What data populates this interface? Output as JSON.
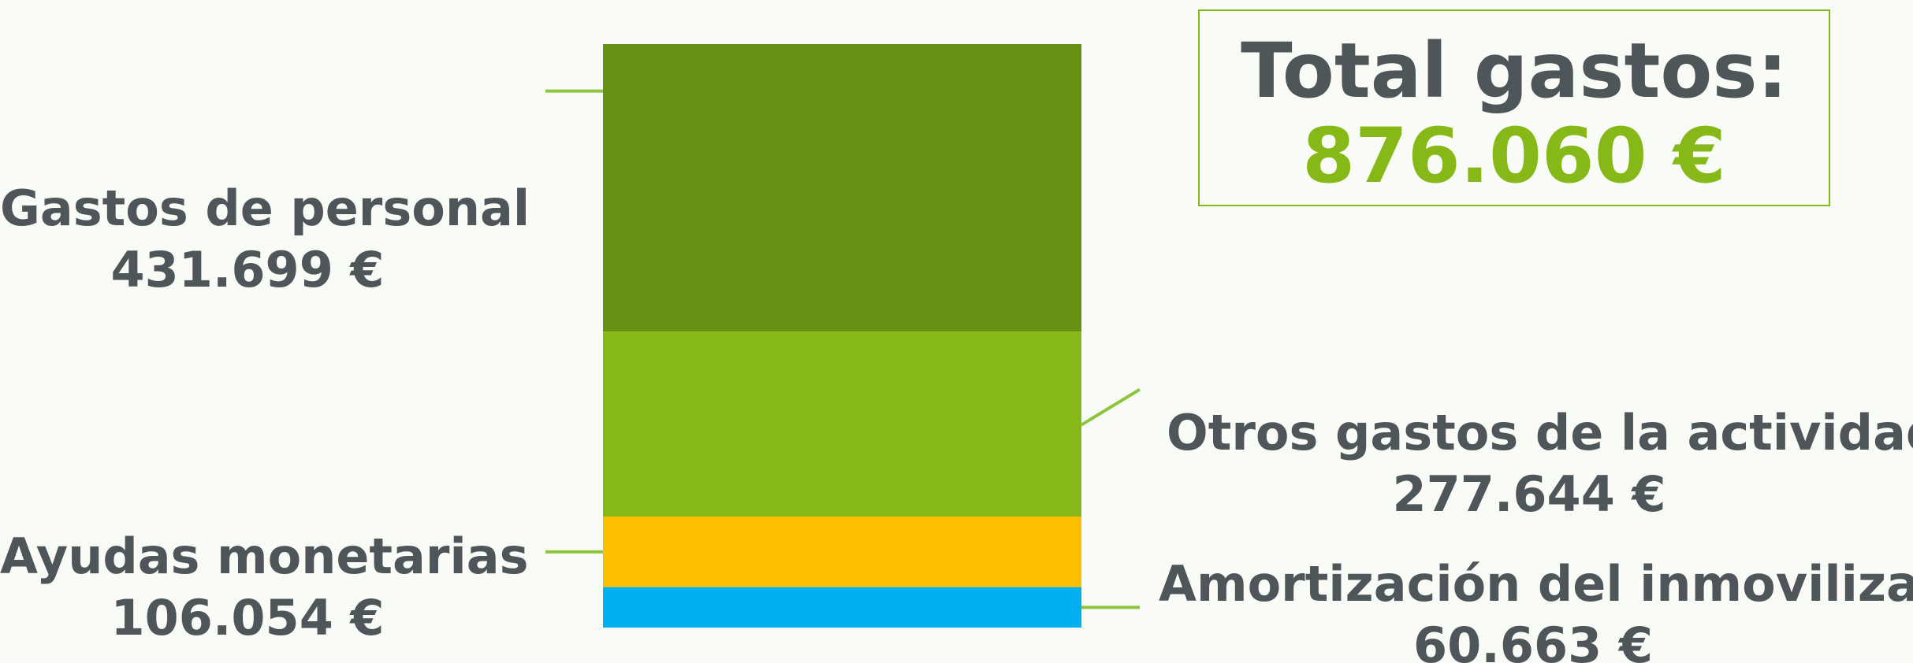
{
  "chart_data": {
    "type": "bar",
    "stacked": true,
    "total_label": "Total gastos:",
    "total_value_label": "876.060 €",
    "total": 876060,
    "segments": [
      {
        "name": "Gastos de personal",
        "value": 431699,
        "value_label": "431.699 €",
        "color": "#669112"
      },
      {
        "name": "Otros gastos de la actividad",
        "value": 277644,
        "value_label": "277.644  €",
        "color": "#86b817"
      },
      {
        "name": "Ayudas monetarias",
        "value": 106054,
        "value_label": "106.054 €",
        "color": "#fbbf00"
      },
      {
        "name": "Amortización del inmovilizado",
        "value": 60663,
        "value_label": "60.663 €",
        "color": "#00b0ee"
      }
    ],
    "connector_color": "#8cc63f"
  }
}
